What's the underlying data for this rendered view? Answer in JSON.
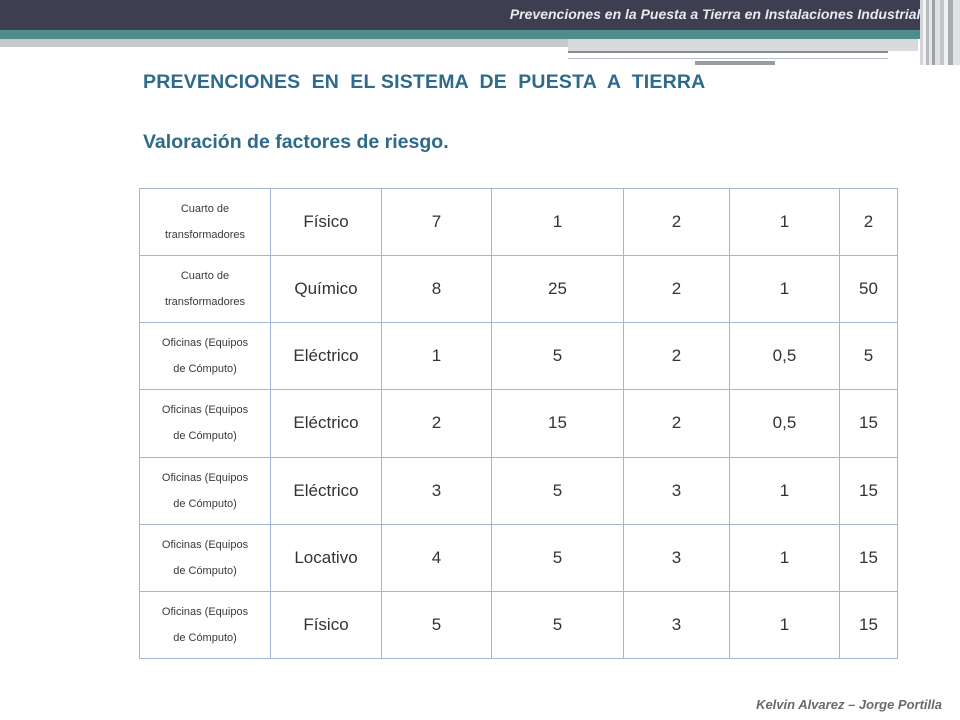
{
  "header": {
    "title": "Prevenciones en la Puesta a Tierra en Instalaciones Industriales"
  },
  "slide": {
    "title": "PREVENCIONES  EN  EL SISTEMA  DE  PUESTA  A  TIERRA",
    "subtitle": "Valoración de factores de riesgo."
  },
  "table": {
    "rows": [
      {
        "area_line1": "Cuarto de",
        "area_line2": "transformadores",
        "factor": "Físico",
        "v1": "7",
        "v2": "1",
        "v3": "2",
        "v4": "1",
        "v5": "2"
      },
      {
        "area_line1": "Cuarto de",
        "area_line2": "transformadores",
        "factor": "Químico",
        "v1": "8",
        "v2": "25",
        "v3": "2",
        "v4": "1",
        "v5": "50"
      },
      {
        "area_line1": "Oficinas (Equipos",
        "area_line2": "de Cómputo)",
        "factor": "Eléctrico",
        "v1": "1",
        "v2": "5",
        "v3": "2",
        "v4": "0,5",
        "v5": "5"
      },
      {
        "area_line1": "Oficinas (Equipos",
        "area_line2": "de Cómputo)",
        "factor": "Eléctrico",
        "v1": "2",
        "v2": "15",
        "v3": "2",
        "v4": "0,5",
        "v5": "15"
      },
      {
        "area_line1": "Oficinas (Equipos",
        "area_line2": "de Cómputo)",
        "factor": "Eléctrico",
        "v1": "3",
        "v2": "5",
        "v3": "3",
        "v4": "1",
        "v5": "15"
      },
      {
        "area_line1": "Oficinas (Equipos",
        "area_line2": "de Cómputo)",
        "factor": "Locativo",
        "v1": "4",
        "v2": "5",
        "v3": "3",
        "v4": "1",
        "v5": "15"
      },
      {
        "area_line1": "Oficinas (Equipos",
        "area_line2": "de Cómputo)",
        "factor": "Físico",
        "v1": "5",
        "v2": "5",
        "v3": "3",
        "v4": "1",
        "v5": "15"
      }
    ]
  },
  "footer": {
    "authors": "Kelvin Alvarez – Jorge Portilla"
  }
}
